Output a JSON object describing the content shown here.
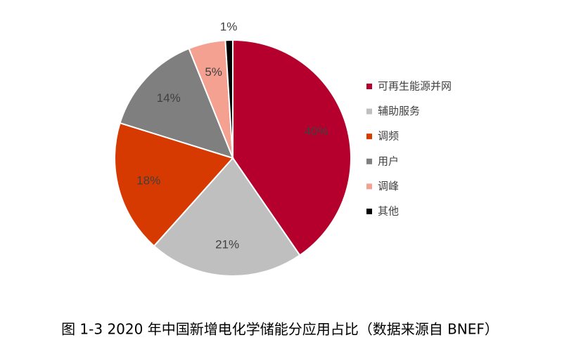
{
  "chart_data": {
    "type": "pie",
    "caption": "图 1-3 2020 年中国新增电化学储能分应用占比（数据来源自 BNEF）",
    "categories": [
      "可再生能源并网",
      "辅助服务",
      "调频",
      "用户",
      "调峰",
      "其他"
    ],
    "values": [
      40,
      21,
      18,
      14,
      5,
      1
    ],
    "value_labels": [
      "40%",
      "21%",
      "18%",
      "14%",
      "5%",
      "1%"
    ],
    "colors": [
      "#b5002e",
      "#bfbfbf",
      "#d63a00",
      "#7f7f7f",
      "#f4a191",
      "#000000"
    ],
    "legend": "right"
  }
}
